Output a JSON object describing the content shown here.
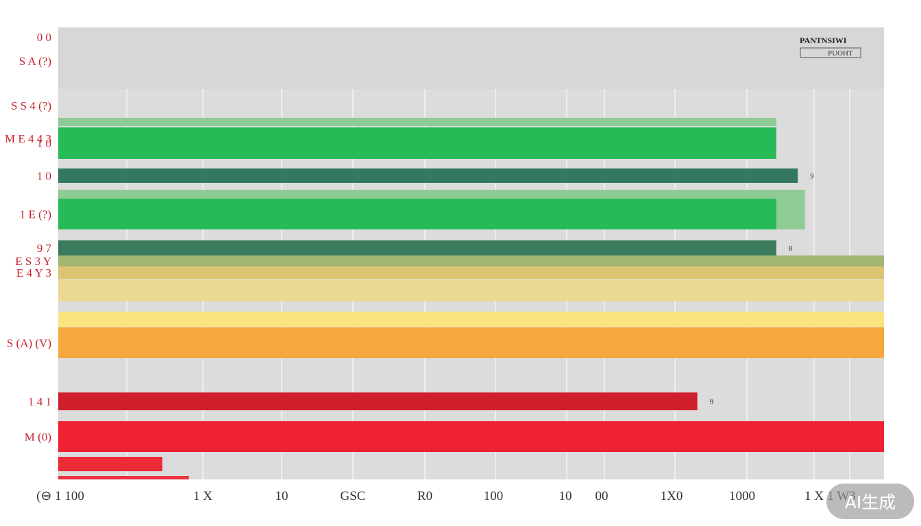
{
  "chart_data": {
    "type": "bar",
    "orientation": "horizontal",
    "legend": {
      "title": "PANTNSIWI",
      "items": [
        "PUOHT"
      ]
    },
    "x_tick_labels": [
      "(⊖ 1 100",
      "1 X",
      "10",
      "GSC",
      "R0",
      "100",
      "10",
      "00",
      "1X0",
      "1000",
      "1 X",
      "1 W3"
    ],
    "bars": [
      {
        "label": "1 0",
        "value": 1000,
        "color": "#27bb57",
        "annotation": ""
      },
      {
        "label": "",
        "value": 990,
        "color": "#8fcb95",
        "annotation": ""
      },
      {
        "label": "1 0",
        "value": 1030,
        "color": "#357861",
        "annotation": "9"
      },
      {
        "label": "",
        "value": 1040,
        "color": "#8fcb95",
        "annotation": ""
      },
      {
        "label": "1 E (?)",
        "value": 1000,
        "color": "#26bb58",
        "annotation": ""
      },
      {
        "label": "9 7",
        "value": 1000,
        "color": "#3a7a5d",
        "annotation": "8"
      },
      {
        "label": "E S 3 Y",
        "value": 1150,
        "color": "#a3b672",
        "annotation": ""
      },
      {
        "label": "E 4 Y 3",
        "value": 1150,
        "color": "#dcc472",
        "annotation": ""
      },
      {
        "label": "",
        "value": 1150,
        "color": "#ebd891",
        "annotation": ""
      },
      {
        "label": "",
        "value": 1150,
        "color": "#fbe480",
        "annotation": ""
      },
      {
        "label": "S (A) (V)",
        "value": 1150,
        "color": "#f6a83e",
        "annotation": ""
      },
      {
        "label": "1 4 1",
        "value": 890,
        "color": "#cf1f2c",
        "annotation": "9"
      },
      {
        "label": "M (0)",
        "value": 1150,
        "color": "#ee2233",
        "annotation": ""
      },
      {
        "label": "",
        "value": 145,
        "color": "#ee2a36",
        "annotation": ""
      },
      {
        "label": "",
        "value": 182,
        "color": "#ee3340",
        "annotation": ""
      }
    ],
    "xlim": [
      0,
      1150
    ],
    "grid": true,
    "legend_position": "top-right"
  },
  "top_labels": [
    "0 0",
    "S A (?)",
    "S S 4 (?)",
    "M E 4 4 3"
  ],
  "watermark": "AI生成"
}
